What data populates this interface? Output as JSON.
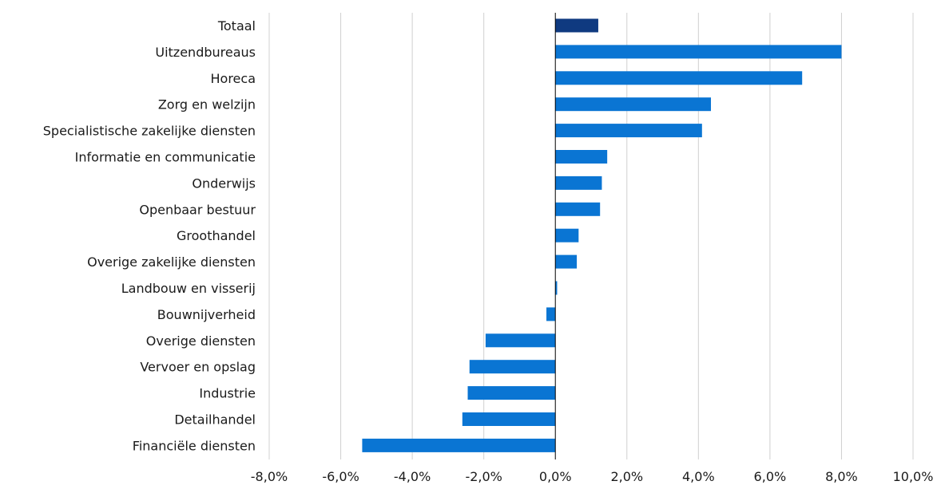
{
  "chart_data": {
    "type": "bar",
    "orientation": "horizontal",
    "categories": [
      "Totaal",
      "Uitzendbureaus",
      "Horeca",
      "Zorg en welzijn",
      "Specialistische zakelijke diensten",
      "Informatie en communicatie",
      "Onderwijs",
      "Openbaar bestuur",
      "Groothandel",
      "Overige zakelijke diensten",
      "Landbouw en visserij",
      "Bouwnijverheid",
      "Overige diensten",
      "Vervoer en opslag",
      "Industrie",
      "Detailhandel",
      "Financiële diensten"
    ],
    "values": [
      1.2,
      8.0,
      6.9,
      4.35,
      4.1,
      1.45,
      1.3,
      1.25,
      0.65,
      0.6,
      0.05,
      -0.25,
      -1.95,
      -2.4,
      -2.45,
      -2.6,
      -5.4
    ],
    "xlim": [
      -8,
      10
    ],
    "xticks": [
      -8,
      -6,
      -4,
      -2,
      0,
      2,
      4,
      6,
      8,
      10
    ],
    "tick_labels": [
      "-8,0%",
      "-6,0%",
      "-4,0%",
      "-2,0%",
      "0,0%",
      "2,0%",
      "4,0%",
      "6,0%",
      "8,0%",
      "10,0%"
    ],
    "grid": "vertical",
    "colors": {
      "highlight": "#0f3a80",
      "bar": "#0a75d3",
      "grid": "#d0d0d0",
      "axis": "#000000"
    },
    "highlight_index": 0
  }
}
